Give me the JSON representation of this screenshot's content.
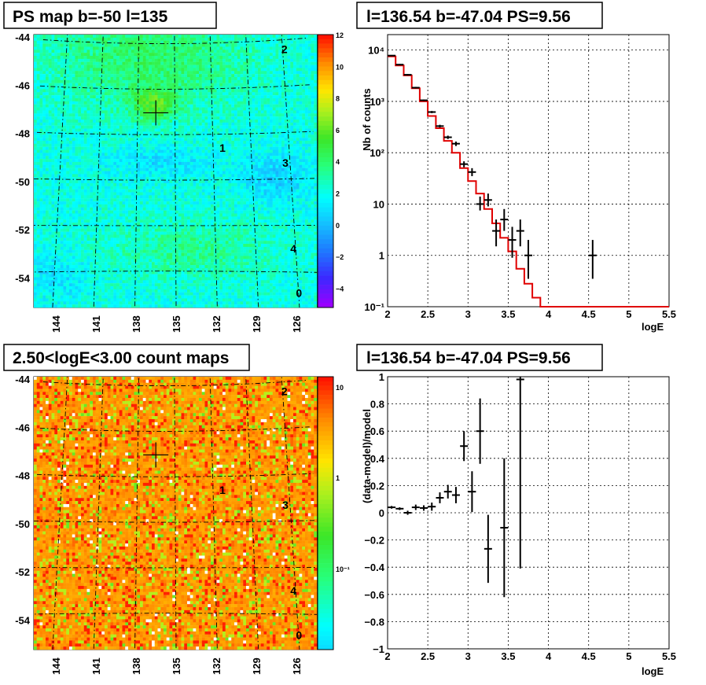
{
  "panels": {
    "ps_map": {
      "title": "PS map b=-50 l=135"
    },
    "count_map": {
      "title": "2.50<logE<3.00 count maps"
    },
    "spectrum": {
      "title": "l=136.54 b=-47.04 PS=9.56"
    },
    "residual": {
      "title": "l=136.54 b=-47.04 PS=9.56"
    }
  },
  "map_axes": {
    "lat_ticks": [
      "-44",
      "-46",
      "-48",
      "-50",
      "-52",
      "-54"
    ],
    "lon_ticks": [
      "144",
      "141",
      "138",
      "135",
      "132",
      "129",
      "126"
    ]
  },
  "sources": [
    "2",
    "1",
    "3",
    "4",
    "0"
  ],
  "chart_data": [
    {
      "type": "heatmap",
      "title": "PS map b=-50 l=135",
      "colorbar": {
        "ticks": [
          "12",
          "10",
          "8",
          "6",
          "4",
          "2",
          "0",
          "−2",
          "−4"
        ],
        "range": [
          -5,
          12
        ]
      },
      "lat_range": [
        -55.6,
        -43.6
      ],
      "lon_range": [
        146,
        124
      ],
      "marker": {
        "l": 136.54,
        "b": -47.04
      },
      "source_labels": [
        {
          "label": "2",
          "l": 126.1,
          "b": -44.4
        },
        {
          "label": "1",
          "l": 131.5,
          "b": -48.6
        },
        {
          "label": "3",
          "l": 126.6,
          "b": -49.3
        },
        {
          "label": "4",
          "l": 126.4,
          "b": -53.0
        },
        {
          "label": "0",
          "l": 126.2,
          "b": -54.9
        }
      ]
    },
    {
      "type": "heatmap",
      "title": "2.50<logE<3.00 count maps",
      "colorbar": {
        "ticks": [
          "10",
          "1",
          "10⁻¹"
        ],
        "scale": "log"
      },
      "lat_range": [
        -55.6,
        -43.6
      ],
      "lon_range": [
        146,
        124
      ],
      "marker": {
        "l": 136.54,
        "b": -47.04
      }
    },
    {
      "type": "line",
      "title": "l=136.54 b=-47.04 PS=9.56",
      "xlabel": "logE",
      "ylabel": "Nb of counts",
      "xlim": [
        2,
        5.5
      ],
      "ylim": [
        0.1,
        20000
      ],
      "yscale": "log",
      "x_ticks": [
        "2",
        "2.5",
        "3",
        "3.5",
        "4",
        "4.5",
        "5",
        "5.5"
      ],
      "y_ticks": [
        "10⁻¹",
        "1",
        "10",
        "10²",
        "10³",
        "10⁴"
      ],
      "grid": true,
      "model": {
        "edges": [
          2.0,
          2.1,
          2.2,
          2.3,
          2.4,
          2.5,
          2.6,
          2.7,
          2.8,
          2.9,
          3.0,
          3.1,
          3.2,
          3.3,
          3.4,
          3.5,
          3.6,
          3.7,
          3.8,
          3.9,
          4.0,
          4.1,
          4.2,
          4.3,
          4.4,
          4.5,
          4.6,
          4.7,
          4.8,
          4.9,
          5.0,
          5.1,
          5.2,
          5.3,
          5.4,
          5.5
        ],
        "values": [
          7500,
          5000,
          3200,
          1800,
          1000,
          520,
          300,
          170,
          100,
          50,
          28,
          16,
          8,
          4.2,
          2.2,
          1.2,
          0.55,
          0.28,
          0.15,
          0.1,
          0.1,
          0.1,
          0.1,
          0.1,
          0.1,
          0.1,
          0.1,
          0.1,
          0.1,
          0.1,
          0.1,
          0.1,
          0.1,
          0.1,
          0.1
        ],
        "color": "#e00000"
      },
      "data": {
        "x": [
          2.05,
          2.15,
          2.25,
          2.35,
          2.45,
          2.55,
          2.65,
          2.75,
          2.85,
          2.95,
          3.05,
          3.15,
          3.25,
          3.35,
          3.45,
          3.55,
          3.65,
          3.75,
          4.55
        ],
        "y": [
          7800,
          5200,
          3300,
          1850,
          1050,
          620,
          330,
          200,
          150,
          60,
          42,
          10,
          12,
          3,
          5,
          2,
          3,
          1,
          1
        ],
        "ylo": [
          7600,
          5050,
          3180,
          1780,
          1010,
          590,
          310,
          185,
          135,
          52,
          35,
          7.5,
          9,
          1.5,
          3,
          0.9,
          1.5,
          0.35,
          0.35
        ],
        "yhi": [
          8000,
          5350,
          3420,
          1920,
          1090,
          650,
          350,
          215,
          165,
          68,
          50,
          14,
          16,
          5,
          8,
          3.6,
          5,
          2,
          2
        ],
        "color": "#000000"
      }
    },
    {
      "type": "scatter",
      "title": "l=136.54 b=-47.04 PS=9.56",
      "xlabel": "logE",
      "ylabel": "(data-model)/model",
      "xlim": [
        2,
        5.5
      ],
      "ylim": [
        -1,
        1
      ],
      "x_ticks": [
        "2",
        "2.5",
        "3",
        "3.5",
        "4",
        "4.5",
        "5",
        "5.5"
      ],
      "y_ticks": [
        "−1",
        "−0.8",
        "−0.6",
        "−0.4",
        "−0.2",
        "0",
        "0.2",
        "0.4",
        "0.6",
        "0.8",
        "1"
      ],
      "grid": true,
      "points": {
        "x": [
          2.05,
          2.15,
          2.25,
          2.35,
          2.45,
          2.55,
          2.65,
          2.75,
          2.85,
          2.95,
          3.05,
          3.15,
          3.25,
          3.45,
          3.65
        ],
        "y": [
          0.04,
          0.03,
          0.0,
          0.04,
          0.035,
          0.045,
          0.11,
          0.155,
          0.13,
          0.49,
          0.155,
          0.6,
          -0.265,
          -0.11,
          0.98
        ],
        "err": [
          0.01,
          0.01,
          0.015,
          0.02,
          0.02,
          0.03,
          0.04,
          0.05,
          0.06,
          0.11,
          0.15,
          0.24,
          0.25,
          0.51,
          1.39
        ]
      }
    }
  ]
}
